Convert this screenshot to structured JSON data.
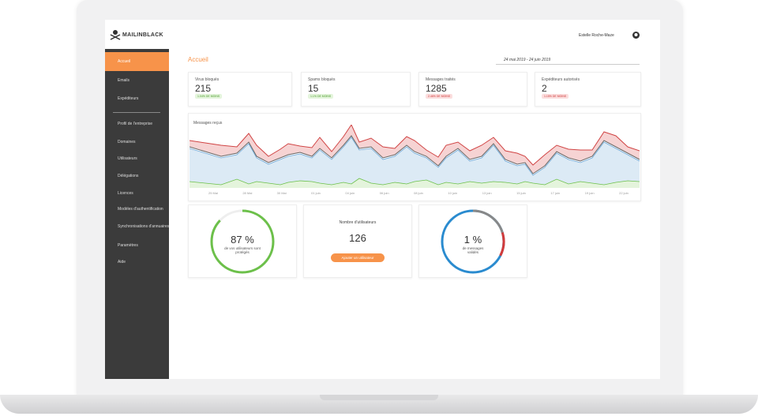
{
  "header": {
    "brand": "MAILINBLACK",
    "user": "Estelle Roche-Maze"
  },
  "sidebar": {
    "items": [
      "Accueil",
      "Emails",
      "Expéditeurs",
      "Profil de l'entreprise",
      "Domaines",
      "Utilisateurs",
      "Délégations",
      "Licences",
      "Modèles d'authentification",
      "Synchronisations d'annuaires",
      "Paramètres",
      "Aide"
    ]
  },
  "page": {
    "title": "Accueil",
    "date_range": "24 mai 2019 - 24 juin 2019"
  },
  "stats": [
    {
      "label": "Virus bloqués",
      "value": 215,
      "badge": "1.04% DE MOINS"
    },
    {
      "label": "Spams bloqués",
      "value": 15,
      "badge": "1.1% DE MOINS"
    },
    {
      "label": "Messages traités",
      "value": 1285,
      "badge": "2.46% DE MOINS"
    },
    {
      "label": "Expéditeurs autorisés",
      "value": 2,
      "badge": "1.15% DE MOINS"
    }
  ],
  "chart": {
    "title": "Messages reçus",
    "x_labels": [
      "25 Mai",
      "28 Mai",
      "30 Mai",
      "01 juin",
      "04 juin",
      "06 juin",
      "08 juin",
      "10 juin",
      "13 juin",
      "15 juin",
      "17 juin",
      "19 juin",
      "22 juin"
    ]
  },
  "widgets": {
    "protected": {
      "value": "87 %",
      "caption": "de vos utilisateurs sont protégés"
    },
    "users": {
      "title": "Nombre d'utilisateurs",
      "value": 126,
      "button": "Ajouter un utilisateur"
    },
    "validated": {
      "value": "1 %",
      "caption": "de messages validés"
    }
  }
}
